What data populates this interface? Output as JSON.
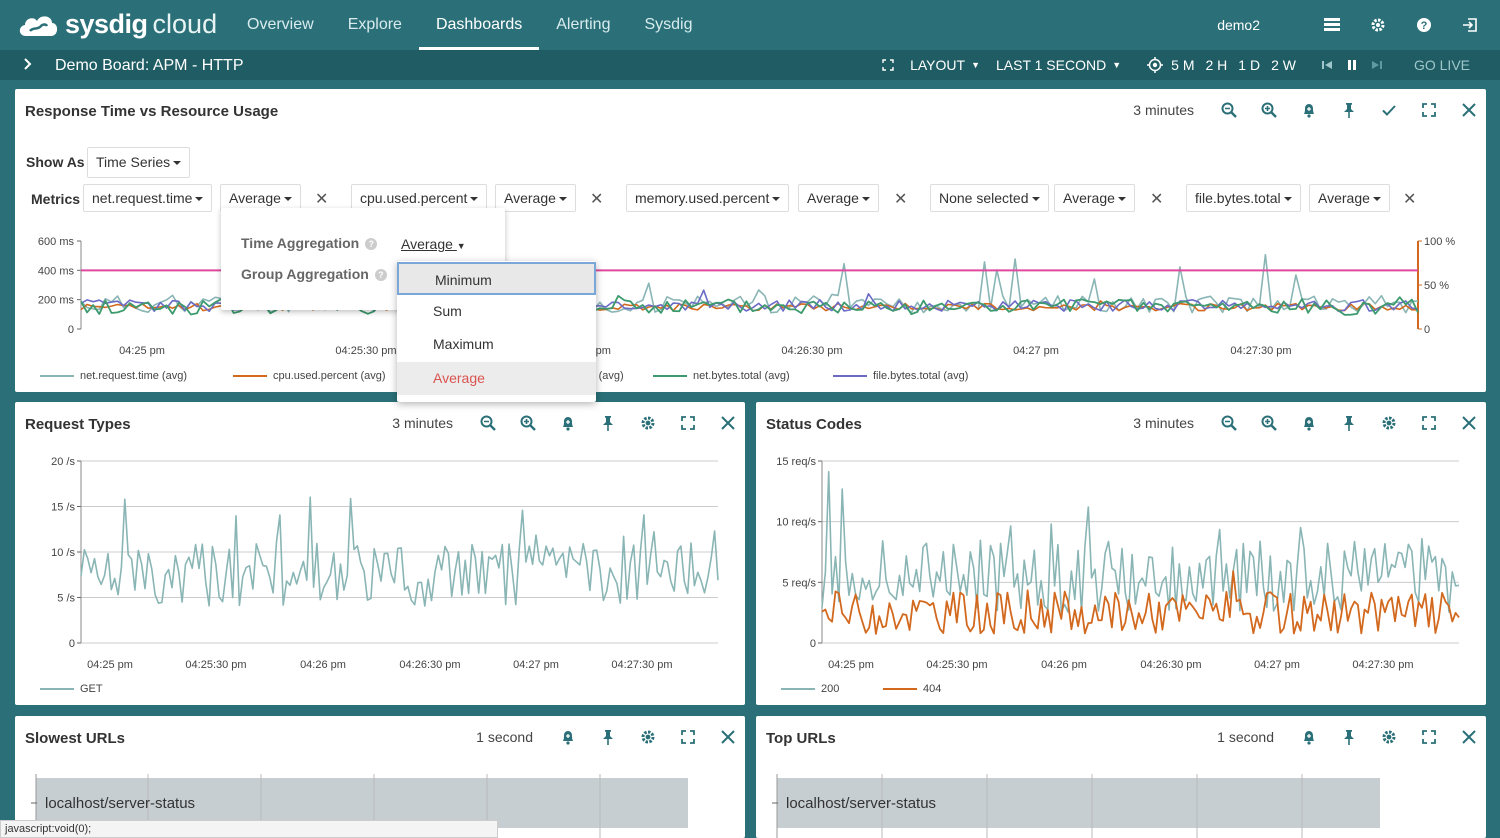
{
  "app": {
    "brand_bold": "sysdig",
    "brand_light": "cloud"
  },
  "nav": [
    {
      "label": "Overview",
      "active": false
    },
    {
      "label": "Explore",
      "active": false
    },
    {
      "label": "Dashboards",
      "active": true
    },
    {
      "label": "Alerting",
      "active": false
    },
    {
      "label": "Sysdig",
      "active": false
    }
  ],
  "user": "demo2",
  "subbar": {
    "board_title": "Demo Board: APM - HTTP",
    "layout": "LAYOUT",
    "last": "LAST 1 SECOND",
    "ranges": [
      "5 M",
      "2 H",
      "1 D",
      "2 W"
    ],
    "go_live": "GO LIVE"
  },
  "main_panel": {
    "title": "Response Time vs Resource Usage",
    "range": "3 minutes",
    "show_as_label": "Show As",
    "show_as_value": "Time Series",
    "metrics_label": "Metrics",
    "metrics": [
      {
        "name": "net.request.time",
        "agg": "Average"
      },
      {
        "name": "cpu.used.percent",
        "agg": "Average"
      },
      {
        "name": "memory.used.percent",
        "agg": "Average"
      },
      {
        "name": "None selected",
        "agg": "Average"
      },
      {
        "name": "file.bytes.total",
        "agg": "Average"
      }
    ],
    "x_ticks": [
      "04:25 pm",
      "04:25:30 pm",
      "04:26 pm",
      "04:26:30 pm",
      "04:27 pm",
      "04:27:30 pm"
    ],
    "y_left_ticks": [
      "600 ms",
      "400 ms",
      "200 ms",
      "0"
    ],
    "y_right_ticks": [
      "100 %",
      "50 %",
      "0"
    ],
    "legend": [
      {
        "label": "net.request.time (avg)",
        "color": "#8ab5b5"
      },
      {
        "label": "cpu.used.percent (avg)",
        "color": "#d2691e"
      },
      {
        "label": "memory.used.percent (avg)",
        "color": "#e0479e"
      },
      {
        "label": "net.bytes.total (avg)",
        "color": "#3c9a6e"
      },
      {
        "label": "file.bytes.total (avg)",
        "color": "#6b6bc6"
      }
    ]
  },
  "popup": {
    "time_agg_label": "Time Aggregation",
    "time_agg_value": "Average",
    "group_agg_label": "Group Aggregation",
    "options": [
      "Minimum",
      "Sum",
      "Maximum",
      "Average"
    ],
    "highlighted": "Minimum",
    "current": "Average"
  },
  "request_types": {
    "title": "Request Types",
    "range": "3 minutes",
    "y_ticks": [
      "20 /s",
      "15 /s",
      "10 /s",
      "5 /s",
      "0"
    ],
    "x_ticks": [
      "04:25 pm",
      "04:25:30 pm",
      "04:26 pm",
      "04:26:30 pm",
      "04:27 pm",
      "04:27:30 pm"
    ],
    "legend": [
      {
        "label": "GET",
        "color": "#8ab5b5"
      }
    ]
  },
  "status_codes": {
    "title": "Status Codes",
    "range": "3 minutes",
    "y_ticks": [
      "15 req/s",
      "10 req/s",
      "5 req/s",
      "0"
    ],
    "x_ticks": [
      "04:25 pm",
      "04:25:30 pm",
      "04:26 pm",
      "04:26:30 pm",
      "04:27 pm",
      "04:27:30 pm"
    ],
    "legend": [
      {
        "label": "200",
        "color": "#8ab5b5"
      },
      {
        "label": "404",
        "color": "#d2691e"
      }
    ]
  },
  "slowest_urls": {
    "title": "Slowest URLs",
    "range": "1 second",
    "url": "localhost/server-status"
  },
  "top_urls": {
    "title": "Top URLs",
    "range": "1 second",
    "url": "localhost/server-status"
  },
  "status_bar": "javascript:void(0);",
  "chart_data": [
    {
      "type": "line",
      "title": "Response Time vs Resource Usage",
      "x_range": [
        "04:24:48 pm",
        "04:27:48 pm"
      ],
      "y_left_range": [
        0,
        600
      ],
      "y_right_range": [
        0,
        100
      ],
      "series": [
        {
          "name": "net.request.time (avg)",
          "axis": "left",
          "approx_range": [
            60,
            560
          ]
        },
        {
          "name": "cpu.used.percent (avg)",
          "axis": "left",
          "approx_level": 130
        },
        {
          "name": "memory.used.percent (avg)",
          "axis": "left",
          "approx_level": 400
        },
        {
          "name": "net.bytes.total (avg)",
          "axis": "left",
          "approx_range": [
            50,
            300
          ]
        },
        {
          "name": "file.bytes.total (avg)",
          "axis": "left",
          "approx_range": [
            120,
            260
          ]
        }
      ]
    },
    {
      "type": "line",
      "title": "Request Types",
      "y_range": [
        0,
        20
      ],
      "series": [
        {
          "name": "GET",
          "approx_range": [
            2,
            15
          ],
          "approx_mean": 7
        }
      ]
    },
    {
      "type": "line",
      "title": "Status Codes",
      "y_range": [
        0,
        15
      ],
      "series": [
        {
          "name": "200",
          "approx_range": [
            1,
            12
          ],
          "approx_mean": 5.5
        },
        {
          "name": "404",
          "approx_range": [
            0,
            5
          ],
          "approx_mean": 2.5
        }
      ]
    }
  ]
}
